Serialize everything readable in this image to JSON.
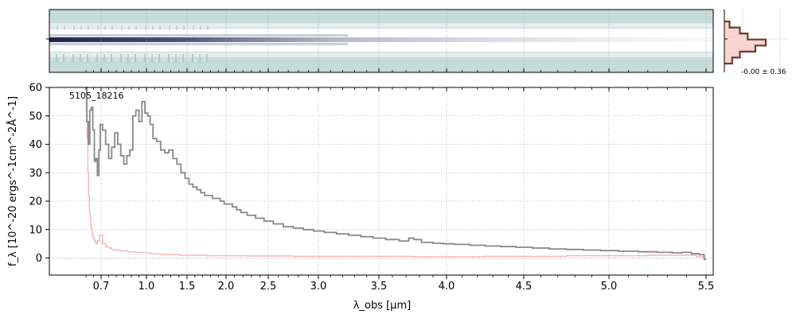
{
  "chart_data": [
    {
      "type": "heatmap",
      "panel": "2d-spectrum",
      "colormap": [
        "#c5dbd9",
        "#e6eeee",
        "#ffffff",
        "#8a8fa8",
        "#1e2245"
      ],
      "trace_center_rows": [
        0.48
      ],
      "grid": true
    },
    {
      "type": "line",
      "panel": "1d-spectrum",
      "label": "5105_18216",
      "xlabel": "λ_obs [μm]",
      "ylabel": "f_λ [10^-20 ergs^-1cm^-2Å^-1]",
      "x_tick_labels": [
        "0.7",
        "1.0",
        "1.5",
        "2.0",
        "2.5",
        "3.0",
        "3.5",
        "4.0",
        "4.5",
        "5.0",
        "5.5"
      ],
      "x_tick_values": [
        0.7,
        1.0,
        1.5,
        2.0,
        2.5,
        3.0,
        3.5,
        4.0,
        4.5,
        5.0,
        5.5
      ],
      "y_ticks": [
        0,
        10,
        20,
        30,
        40,
        50,
        60
      ],
      "xlim": [
        0.58,
        5.52
      ],
      "ylim": [
        -6,
        60
      ],
      "grid": true,
      "series": [
        {
          "color": "#888888",
          "x": [
            0.6,
            0.61,
            0.62,
            0.63,
            0.64,
            0.65,
            0.66,
            0.67,
            0.68,
            0.69,
            0.7,
            0.72,
            0.74,
            0.76,
            0.78,
            0.8,
            0.82,
            0.84,
            0.86,
            0.88,
            0.9,
            0.92,
            0.94,
            0.96,
            0.98,
            1.0,
            1.03,
            1.06,
            1.1,
            1.15,
            1.2,
            1.25,
            1.3,
            1.35,
            1.4,
            1.45,
            1.5,
            1.55,
            1.6,
            1.65,
            1.7,
            1.75,
            1.8,
            1.85,
            1.9,
            1.95,
            2.0,
            2.05,
            2.1,
            2.15,
            2.2,
            2.3,
            2.4,
            2.5,
            2.6,
            2.7,
            2.8,
            2.9,
            3.0,
            3.1,
            3.2,
            3.3,
            3.4,
            3.5,
            3.6,
            3.7,
            3.74,
            3.78,
            3.85,
            3.95,
            4.0,
            4.1,
            4.2,
            4.3,
            4.4,
            4.5,
            4.6,
            4.7,
            4.8,
            4.9,
            5.0,
            5.1,
            5.2,
            5.3,
            5.35,
            5.4,
            5.45,
            5.48,
            5.5
          ],
          "y": [
            61,
            48,
            40,
            52,
            53,
            45,
            34,
            35,
            29,
            38,
            47,
            45,
            40,
            35,
            39,
            44,
            40,
            36,
            33,
            36,
            38,
            50,
            52,
            48,
            55,
            51,
            50,
            47,
            42,
            41,
            38,
            37,
            38,
            35,
            33,
            30,
            28,
            26,
            25,
            24,
            23,
            22,
            22,
            21,
            21,
            20,
            19,
            19,
            18,
            17,
            16,
            15,
            14,
            13,
            12,
            11,
            10.5,
            10,
            9.5,
            9,
            8.5,
            8,
            7.5,
            7,
            6.5,
            6,
            7,
            6.5,
            5.5,
            5.2,
            5,
            4.8,
            4.5,
            4.2,
            4,
            3.8,
            3.5,
            3.2,
            3,
            2.8,
            2.6,
            2.4,
            2.2,
            2,
            1.8,
            2,
            1.5,
            1.2,
            -0.5
          ]
        },
        {
          "color": "#f5b5b5",
          "x": [
            0.6,
            0.605,
            0.61,
            0.615,
            0.62,
            0.625,
            0.63,
            0.635,
            0.64,
            0.645,
            0.65,
            0.66,
            0.67,
            0.68,
            0.7,
            0.72,
            0.74,
            0.76,
            0.78,
            0.8,
            0.85,
            0.9,
            0.95,
            1.0,
            1.1,
            1.2,
            1.3,
            1.5,
            2.0,
            2.5,
            3.0,
            3.5,
            4.0,
            4.5,
            5.0,
            5.4,
            5.5
          ],
          "y": [
            60,
            52,
            42,
            30,
            22,
            16,
            14,
            11,
            10,
            8,
            7,
            6,
            5,
            6,
            8,
            5,
            4,
            3.5,
            3,
            2.8,
            2.5,
            2.2,
            2,
            1.8,
            1.5,
            1.3,
            1.2,
            1,
            0.8,
            0.7,
            0.6,
            0.6,
            0.5,
            0.6,
            0.8,
            1,
            0.5
          ]
        }
      ]
    },
    {
      "type": "area",
      "panel": "histogram",
      "annotation": "-0.00 ± 0.36",
      "bins": [
        -1.2,
        -0.9,
        -0.6,
        -0.3,
        0.0,
        0.3,
        0.6,
        0.9
      ],
      "counts": [
        0.1,
        0.3,
        0.45,
        0.8,
        0.6,
        0.3,
        0.15
      ],
      "color": "#6b3b2e",
      "fill": "#f8d4d0",
      "grid": true
    }
  ]
}
